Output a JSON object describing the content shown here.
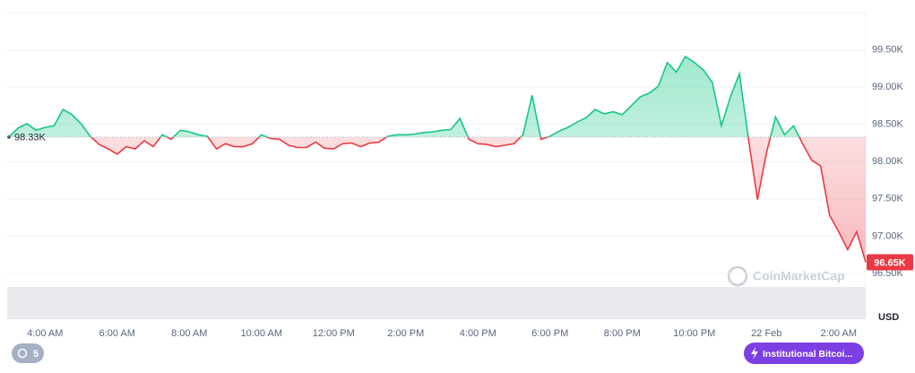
{
  "chart_data": {
    "type": "line",
    "y_unit": "USD",
    "watermark": "CoinMarketCap",
    "badge": "5",
    "event_tag": "Institutional Bitcoi...",
    "categories": [
      null,
      null,
      null,
      null,
      "4:00 AM",
      null,
      null,
      null,
      null,
      null,
      null,
      null,
      "6:00 AM",
      null,
      null,
      null,
      null,
      null,
      null,
      null,
      "8:00 AM",
      null,
      null,
      null,
      null,
      null,
      null,
      null,
      "10:00 AM",
      null,
      null,
      null,
      null,
      null,
      null,
      null,
      "12:00 PM",
      null,
      null,
      null,
      null,
      null,
      null,
      null,
      "2:00 PM",
      null,
      null,
      null,
      null,
      null,
      null,
      null,
      "4:00 PM",
      null,
      null,
      null,
      null,
      null,
      null,
      null,
      "6:00 PM",
      null,
      null,
      null,
      null,
      null,
      null,
      null,
      "8:00 PM",
      null,
      null,
      null,
      null,
      null,
      null,
      null,
      "10:00 PM",
      null,
      null,
      null,
      null,
      null,
      null,
      null,
      "22 Feb",
      null,
      null,
      null,
      null,
      null,
      null,
      null,
      "2:00 AM",
      null,
      null,
      null
    ],
    "values": [
      98330,
      98450,
      98510,
      98420,
      98460,
      98480,
      98700,
      98630,
      98510,
      98340,
      98230,
      98170,
      98100,
      98200,
      98170,
      98280,
      98200,
      98360,
      98300,
      98420,
      98400,
      98360,
      98340,
      98170,
      98240,
      98200,
      98200,
      98240,
      98360,
      98310,
      98300,
      98220,
      98190,
      98190,
      98260,
      98180,
      98170,
      98240,
      98250,
      98200,
      98250,
      98260,
      98340,
      98360,
      98360,
      98370,
      98390,
      98400,
      98420,
      98430,
      98580,
      98300,
      98240,
      98230,
      98200,
      98220,
      98240,
      98360,
      98890,
      98300,
      98340,
      98410,
      98460,
      98530,
      98590,
      98700,
      98640,
      98670,
      98630,
      98750,
      98870,
      98920,
      99010,
      99330,
      99200,
      99410,
      99330,
      99230,
      99060,
      98480,
      98870,
      99180,
      98300,
      97490,
      98120,
      98600,
      98360,
      98480,
      98240,
      98020,
      97940,
      97280,
      97060,
      96820,
      97060,
      96650
    ],
    "up_color": "#16c784",
    "down_color": "#ea3943",
    "baseline": {
      "value": 98330,
      "label": "98.33K"
    },
    "last_price": {
      "value": 96650,
      "label": "96.65K"
    },
    "ylim": [
      96000,
      100000
    ],
    "yticks": [
      {
        "value": 96500,
        "label": "96.50K"
      },
      {
        "value": 97000,
        "label": "97.00K"
      },
      {
        "value": 97500,
        "label": "97.50K"
      },
      {
        "value": 98000,
        "label": "98.00K"
      },
      {
        "value": 98500,
        "label": "98.50K"
      },
      {
        "value": 99000,
        "label": "99.00K"
      },
      {
        "value": 99500,
        "label": "99.50K"
      }
    ],
    "grid": true
  }
}
